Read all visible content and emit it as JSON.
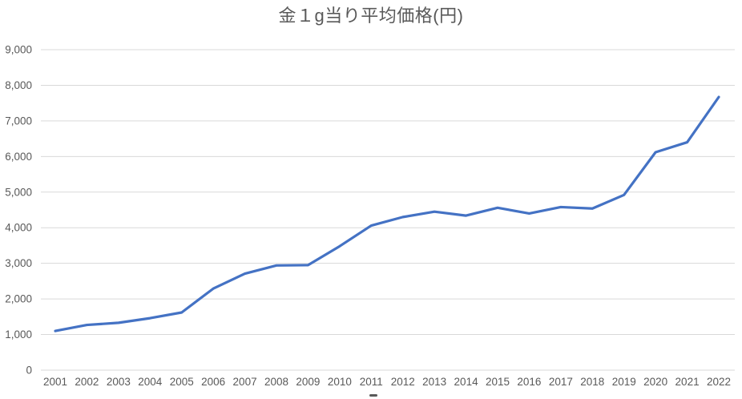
{
  "chart": {
    "title": "金１g当り平均価格(円)"
  },
  "chart_data": {
    "type": "line",
    "title": "金１g当り平均価格(円)",
    "categories": [
      "2001",
      "2002",
      "2003",
      "2004",
      "2005",
      "2006",
      "2007",
      "2008",
      "2009",
      "2010",
      "2011",
      "2012",
      "2013",
      "2014",
      "2015",
      "2016",
      "2017",
      "2018",
      "2019",
      "2020",
      "2021",
      "2022"
    ],
    "series": [
      {
        "name": "",
        "values": [
          1100,
          1270,
          1330,
          1460,
          1620,
          2290,
          2710,
          2940,
          2950,
          3480,
          4060,
          4300,
          4450,
          4340,
          4560,
          4400,
          4580,
          4540,
          4920,
          6120,
          6400,
          7670
        ]
      }
    ],
    "xlabel": "",
    "ylabel": "",
    "ylim": [
      0,
      9000
    ],
    "y_ticks": [
      0,
      1000,
      2000,
      3000,
      4000,
      5000,
      6000,
      7000,
      8000,
      9000
    ],
    "y_tick_labels": [
      "0",
      "1,000",
      "2,000",
      "3,000",
      "4,000",
      "5,000",
      "6,000",
      "7,000",
      "8,000",
      "9,000"
    ],
    "grid": "horizontal",
    "legend_position": "none",
    "colors": {
      "line": "#4472C4",
      "gridline": "#D9D9D9",
      "tick_text": "#595959",
      "title_text": "#595959",
      "background": "#FFFFFF"
    }
  }
}
